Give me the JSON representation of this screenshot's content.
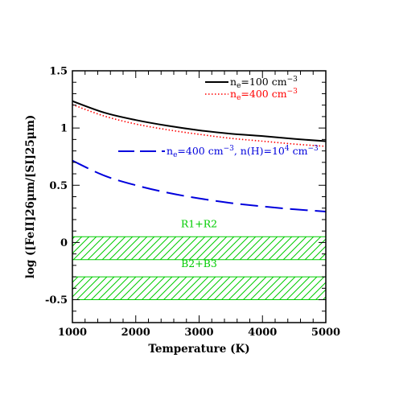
{
  "chart_data": {
    "type": "line",
    "xlabel": "Temperature (K)",
    "ylabel": "log ([FeII]26μm/[SI]25μm)",
    "xlim": [
      1000,
      5000
    ],
    "ylim": [
      -0.7,
      1.5
    ],
    "x_ticks": [
      1000,
      2000,
      3000,
      4000,
      5000
    ],
    "y_tick_labels": [
      "1.5",
      "1",
      "0.5",
      "0",
      "-0.5"
    ],
    "y_tick_values": [
      1.5,
      1.0,
      0.5,
      0.0,
      -0.5
    ],
    "grid": false,
    "legend_placement": "top-right",
    "x": [
      1000,
      1500,
      2000,
      2500,
      3000,
      3500,
      4000,
      4500,
      5000
    ],
    "series": [
      {
        "name_parts": {
          "pre": "n",
          "sub": "e",
          "mid": "=100  cm",
          "sup": "−3",
          "post": ""
        },
        "color": "#000000",
        "style": "solid",
        "values": [
          1.235,
          1.135,
          1.07,
          1.02,
          0.98,
          0.95,
          0.93,
          0.905,
          0.885
        ]
      },
      {
        "name_parts": {
          "pre": "n",
          "sub": "e",
          "mid": "=400  cm",
          "sup": "−3",
          "post": ""
        },
        "color": "#ff0000",
        "style": "dotted",
        "values": [
          1.205,
          1.105,
          1.035,
          0.985,
          0.945,
          0.91,
          0.885,
          0.86,
          0.84
        ]
      },
      {
        "name_parts": {
          "pre": "n",
          "sub": "e",
          "mid": "=400  cm",
          "sup": "−3",
          "post": ", n(H)=10",
          "sup2": "4",
          "post2": "  cm",
          "sup3": "−3"
        },
        "color": "#0000dd",
        "style": "dashed",
        "values": [
          0.715,
          0.585,
          0.5,
          0.435,
          0.385,
          0.345,
          0.315,
          0.29,
          0.27
        ]
      }
    ],
    "bands": [
      {
        "label": "R1+R2",
        "y_low": -0.15,
        "y_high": 0.05,
        "color": "#00cc00"
      },
      {
        "label": "B2+B3",
        "y_low": -0.5,
        "y_high": -0.3,
        "color": "#00cc00"
      }
    ]
  }
}
